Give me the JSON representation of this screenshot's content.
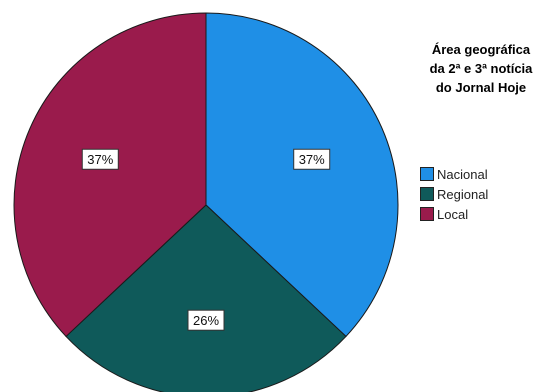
{
  "chart_data": {
    "type": "pie",
    "title_lines": [
      "Área geográfica",
      "da 2ª e 3ª notícia",
      "do Jornal Hoje"
    ],
    "series": [
      {
        "name": "Nacional",
        "value": 37,
        "label": "37%",
        "color": "#1f8fe6"
      },
      {
        "name": "Regional",
        "value": 26,
        "label": "26%",
        "color": "#0f5a5a"
      },
      {
        "name": "Local",
        "value": 37,
        "label": "37%",
        "color": "#9a1b4c"
      }
    ],
    "legend_position": "right"
  }
}
